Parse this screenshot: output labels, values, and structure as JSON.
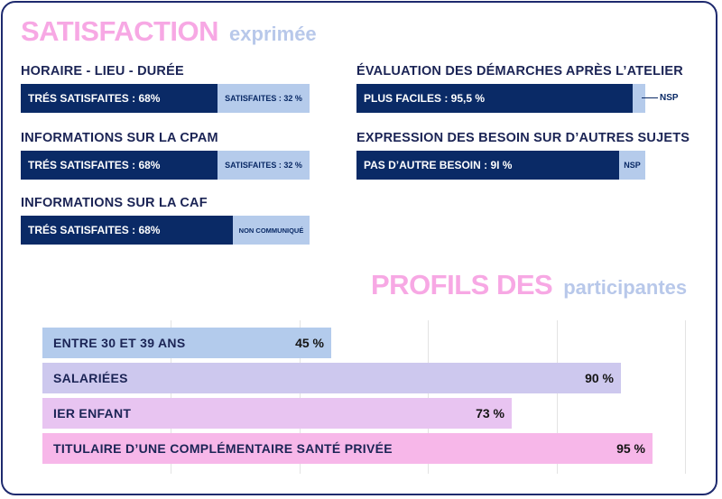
{
  "satisfaction": {
    "title_strong": "SATISFACTION",
    "title_light": "exprimée",
    "metrics": [
      {
        "label": "HORAIRE  - LIEU  - DURÉE",
        "primary_label": "TRÉS SATISFAITES : 68%",
        "primary_pct": 68,
        "secondary_label": "SATISFAITES : 32 %",
        "secondary_pct": 32
      },
      {
        "label": "INFORMATIONS SUR LA CPAM",
        "primary_label": "TRÉS SATISFAITES : 68%",
        "primary_pct": 68,
        "secondary_label": "SATISFAITES : 32 %",
        "secondary_pct": 32
      },
      {
        "label": "INFORMATIONS SUR LA CAF",
        "primary_label": "TRÉS SATISFAITES : 68%",
        "primary_pct": 68,
        "secondary_label": "NON COMMUNIQUÉ",
        "secondary_pct": 32
      },
      {
        "label": "ÉVALUATION DES DÉMARCHES APRÈS L’ATELIER",
        "primary_label": "PLUS FACILES : 95,5 %",
        "primary_pct": 95.5,
        "secondary_label": "NSP",
        "secondary_pct": 4.5
      },
      {
        "label": "EXPRESSION DES BESOIN SUR D’AUTRES SUJETS",
        "primary_label": "PAS D’AUTRE BESOIN : 9I %",
        "primary_pct": 91,
        "secondary_label": "NSP",
        "secondary_pct": 9
      }
    ]
  },
  "profiles": {
    "title_strong": "PROFILS DES",
    "title_light": "participantes"
  },
  "chart_data": {
    "type": "bar",
    "orientation": "horizontal",
    "categories": [
      "ENTRE 30 ET 39 ANS",
      "SALARIÉES",
      "IER ENFANT",
      "TITULAIRE D’UNE COMPLÉMENTAIRE SANTÉ PRIVÉE"
    ],
    "values": [
      45,
      90,
      73,
      95
    ],
    "value_labels": [
      "45 %",
      "90 %",
      "73 %",
      "95 %"
    ],
    "xlim": [
      0,
      100
    ],
    "grid": true,
    "colors": [
      "#b3cbec",
      "#cdc8ee",
      "#e8c4f1",
      "#f7b7e9"
    ]
  },
  "colors": {
    "navy": "#0a2a66",
    "light_blue": "#b5cbeb",
    "pink_title": "#f7a8e4",
    "light_title": "#b8c8ea"
  }
}
